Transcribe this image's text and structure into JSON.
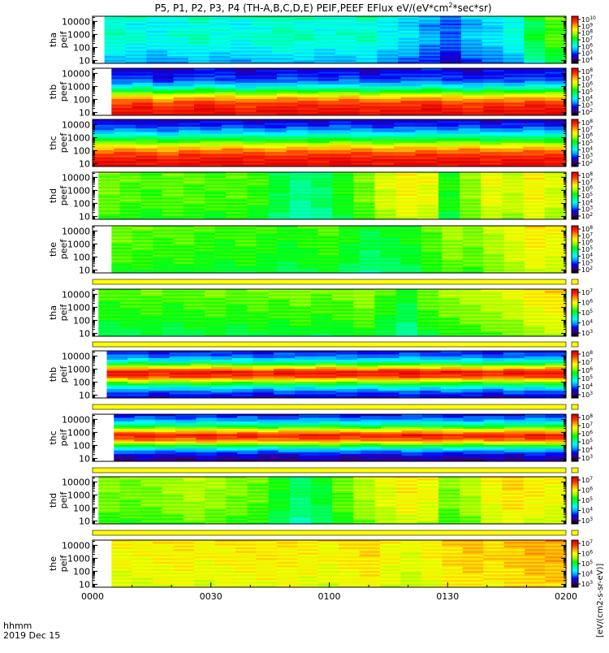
{
  "chart_data": {
    "type": "heatmap",
    "title": "P5, P1, P2, P3, P4 (TH-A,B,C,D,E) PEIF,PEEF EFlux eV/(eV*cm",
    "title_sup": "2",
    "title_tail": "*sec*sr)",
    "x_tick_labels": [
      "0000",
      "0030",
      "0100",
      "0130",
      "0200"
    ],
    "x_corner_label_1": "hhmm",
    "x_corner_label_2": "2019 Dec 15",
    "x_range_minutes": [
      0,
      120
    ],
    "y_scale": "log",
    "y_range": [
      6,
      25000
    ],
    "y_tick_labels": [
      "10",
      "100",
      "1000",
      "10000"
    ],
    "colorbar_scale": "log",
    "colorbar_axis_label": "[eV/(cm2-s-sr-eV)]",
    "colorbar_colors": [
      "#000000",
      "#3a007a",
      "#0000ff",
      "#00a0ff",
      "#00ffff",
      "#00ff80",
      "#00ff00",
      "#a0ff00",
      "#ffff00",
      "#ffa000",
      "#ff3000",
      "#e00000"
    ],
    "panels": [
      {
        "label_1": "tha",
        "label_2": "peif",
        "data_start_min": 3.0,
        "cbar_ticks": [
          "10^10",
          "10^9",
          "10^8",
          "10^7",
          "10^6",
          "10^5",
          "10^4"
        ],
        "cbar_exp": [
          "10",
          "9",
          "8",
          "7",
          "6",
          "5",
          "4"
        ],
        "cols": [
          0.42,
          0.4,
          0.38,
          0.4,
          0.42,
          0.4,
          0.39,
          0.41,
          0.43,
          0.42,
          0.4,
          0.41,
          0.42,
          0.38,
          0.35,
          0.3,
          0.25,
          0.32,
          0.35,
          0.4,
          0.52,
          0.6
        ],
        "energy_profile": [
          0.38,
          0.42,
          0.45,
          0.48,
          0.5,
          0.48,
          0.46,
          0.52
        ]
      },
      {
        "label_1": "thb",
        "label_2": "peef",
        "data_start_min": 4.8,
        "cbar_ticks": [
          "10^8",
          "10^7",
          "10^6",
          "10^5",
          "10^4",
          "10^3",
          "10^2"
        ],
        "cbar_exp": [
          "8",
          "7",
          "6",
          "5",
          "4",
          "3",
          "2"
        ],
        "cols": [
          0.0,
          0.02,
          -0.03,
          0.0,
          0.03,
          0.01,
          -0.02,
          0.0,
          0.02,
          0.01,
          0.0,
          0.02,
          -0.01,
          0.0,
          0.01,
          0.03,
          0.0,
          -0.02,
          0.01,
          0.0,
          0.02,
          0.01
        ],
        "energy_profile": [
          0.98,
          0.95,
          0.9,
          0.78,
          0.55,
          0.35,
          0.22,
          0.18,
          0.15
        ]
      },
      {
        "label_1": "thc",
        "label_2": "peef",
        "data_start_min": 0.0,
        "cbar_ticks": [
          "10^8",
          "10^7",
          "10^6",
          "10^5",
          "10^4",
          "10^3",
          "10^2"
        ],
        "cbar_exp": [
          "8",
          "7",
          "6",
          "5",
          "4",
          "3",
          "2"
        ],
        "cols": [
          0.0,
          0.01,
          0.0,
          -0.02,
          0.01,
          0.0,
          0.02,
          0.0,
          -0.01,
          0.01,
          0.0,
          0.02,
          0.01,
          -0.01,
          0.0,
          0.01,
          0.0,
          0.02,
          -0.01,
          0.0,
          0.01,
          0.0
        ],
        "energy_profile": [
          0.98,
          0.96,
          0.9,
          0.8,
          0.62,
          0.45,
          0.3,
          0.2,
          0.14
        ]
      },
      {
        "label_1": "thd",
        "label_2": "peef",
        "data_start_min": 1.5,
        "cbar_ticks": [
          "10^8",
          "10^7",
          "10^6",
          "10^5",
          "10^4",
          "10^3",
          "10^2"
        ],
        "cbar_exp": [
          "8",
          "7",
          "6",
          "5",
          "4",
          "3",
          "2"
        ],
        "cols": [
          0.58,
          0.56,
          0.55,
          0.57,
          0.56,
          0.55,
          0.56,
          0.54,
          0.48,
          0.42,
          0.45,
          0.52,
          0.58,
          0.66,
          0.7,
          0.68,
          0.52,
          0.6,
          0.68,
          0.65,
          0.7,
          0.66
        ],
        "energy_profile": [
          0.48,
          0.5,
          0.52,
          0.53,
          0.52,
          0.53,
          0.54,
          0.52
        ]
      },
      {
        "label_1": "the",
        "label_2": "peef",
        "data_start_min": 4.8,
        "cbar_ticks": [
          "10^8",
          "10^7",
          "10^6",
          "10^5",
          "10^4",
          "10^3",
          "10^2"
        ],
        "cbar_exp": [
          "8",
          "7",
          "6",
          "5",
          "4",
          "3",
          "2"
        ],
        "cols": [
          0.56,
          0.55,
          0.54,
          0.55,
          0.53,
          0.52,
          0.54,
          0.52,
          0.5,
          0.52,
          0.54,
          0.5,
          0.46,
          0.48,
          0.5,
          0.55,
          0.6,
          0.58,
          0.62,
          0.66,
          0.7,
          0.68
        ],
        "energy_profile": [
          0.48,
          0.5,
          0.52,
          0.52,
          0.53,
          0.54,
          0.54,
          0.56
        ]
      },
      {
        "label_1": "tha",
        "label_2": "peif",
        "data_start_min": 1.5,
        "cbar_ticks": [
          "10^7",
          "10^6",
          "10^5",
          "10^4",
          "10^3"
        ],
        "cbar_exp": [
          "7",
          "6",
          "5",
          "4",
          "3"
        ],
        "cols": [
          0.52,
          0.53,
          0.54,
          0.52,
          0.54,
          0.55,
          0.53,
          0.55,
          0.54,
          0.56,
          0.54,
          0.55,
          0.58,
          0.52,
          0.47,
          0.55,
          0.58,
          0.6,
          0.62,
          0.64,
          0.68,
          0.7
        ],
        "energy_profile": [
          0.46,
          0.48,
          0.5,
          0.52,
          0.53,
          0.54,
          0.56,
          0.57
        ]
      },
      {
        "label_1": "thb",
        "label_2": "peif",
        "data_start_min": 3.6,
        "cbar_ticks": [
          "10^8",
          "10^7",
          "10^6",
          "10^5",
          "10^4",
          "10^3"
        ],
        "cbar_exp": [
          "8",
          "7",
          "6",
          "5",
          "4",
          "3"
        ],
        "cols": [
          0.0,
          0.02,
          -0.01,
          0.0,
          0.02,
          0.01,
          0.0,
          -0.02,
          0.01,
          0.0,
          0.02,
          0.0,
          -0.01,
          0.01,
          0.02,
          0.0,
          0.01,
          0.0,
          -0.02,
          0.01,
          0.0,
          0.02
        ],
        "energy_profile": [
          0.15,
          0.22,
          0.38,
          0.62,
          0.9,
          0.96,
          0.7,
          0.4,
          0.25,
          0.18
        ]
      },
      {
        "label_1": "thc",
        "label_2": "peif",
        "data_start_min": 5.4,
        "cbar_ticks": [
          "10^8",
          "10^7",
          "10^6",
          "10^5",
          "10^4",
          "10^3"
        ],
        "cbar_exp": [
          "8",
          "7",
          "6",
          "5",
          "4",
          "3"
        ],
        "cols": [
          0.0,
          0.01,
          0.0,
          -0.01,
          0.02,
          0.0,
          0.01,
          -0.02,
          0.0,
          0.01,
          0.02,
          0.0,
          -0.01,
          0.0,
          0.02,
          0.01,
          0.0,
          -0.01,
          0.01,
          0.0,
          0.02,
          0.01
        ],
        "energy_profile": [
          0.1,
          0.15,
          0.28,
          0.55,
          0.85,
          0.95,
          0.72,
          0.45,
          0.28,
          0.18
        ]
      },
      {
        "label_1": "thd",
        "label_2": "peif",
        "data_start_min": 1.5,
        "cbar_ticks": [
          "10^7",
          "10^6",
          "10^5",
          "10^4",
          "10^3"
        ],
        "cbar_exp": [
          "7",
          "6",
          "5",
          "4",
          "3"
        ],
        "cols": [
          0.58,
          0.57,
          0.58,
          0.6,
          0.62,
          0.6,
          0.58,
          0.56,
          0.5,
          0.44,
          0.48,
          0.56,
          0.62,
          0.66,
          0.7,
          0.68,
          0.58,
          0.62,
          0.68,
          0.72,
          0.7,
          0.68
        ],
        "energy_profile": [
          0.48,
          0.5,
          0.52,
          0.53,
          0.53,
          0.54,
          0.54,
          0.55
        ]
      },
      {
        "label_1": "the",
        "label_2": "peif",
        "data_start_min": 4.8,
        "cbar_ticks": [
          "10^7",
          "10^6",
          "10^5",
          "10^4",
          "10^3"
        ],
        "cbar_exp": [
          "7",
          "6",
          "5",
          "4",
          "3"
        ],
        "cols": [
          0.64,
          0.64,
          0.65,
          0.66,
          0.64,
          0.65,
          0.66,
          0.66,
          0.66,
          0.65,
          0.64,
          0.66,
          0.68,
          0.64,
          0.62,
          0.65,
          0.68,
          0.7,
          0.68,
          0.7,
          0.72,
          0.72
        ],
        "energy_profile": [
          0.54,
          0.56,
          0.56,
          0.57,
          0.58,
          0.58,
          0.58,
          0.6
        ]
      }
    ]
  }
}
